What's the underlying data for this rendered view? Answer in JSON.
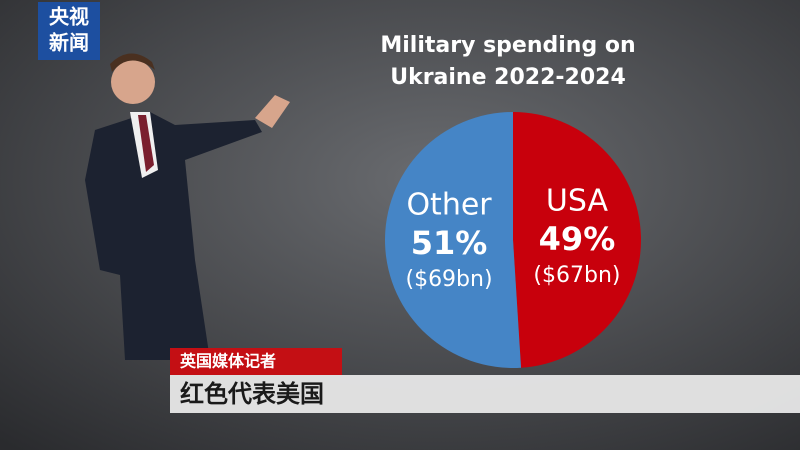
{
  "logo": {
    "line1": "央视",
    "line2": "新闻"
  },
  "caption": {
    "speaker": "英国媒体记者",
    "text": "红色代表美国"
  },
  "chart_data": {
    "type": "pie",
    "title": [
      "Military spending on",
      "Ukraine 2022-2024"
    ],
    "categories": [
      "USA",
      "Other"
    ],
    "values": [
      49,
      51
    ],
    "value_labels": [
      "49%",
      "51%"
    ],
    "amounts": [
      67,
      69
    ],
    "amount_labels": [
      "($67bn)",
      "($69bn)"
    ],
    "colors": [
      "#c8000c",
      "#4585c6"
    ]
  }
}
